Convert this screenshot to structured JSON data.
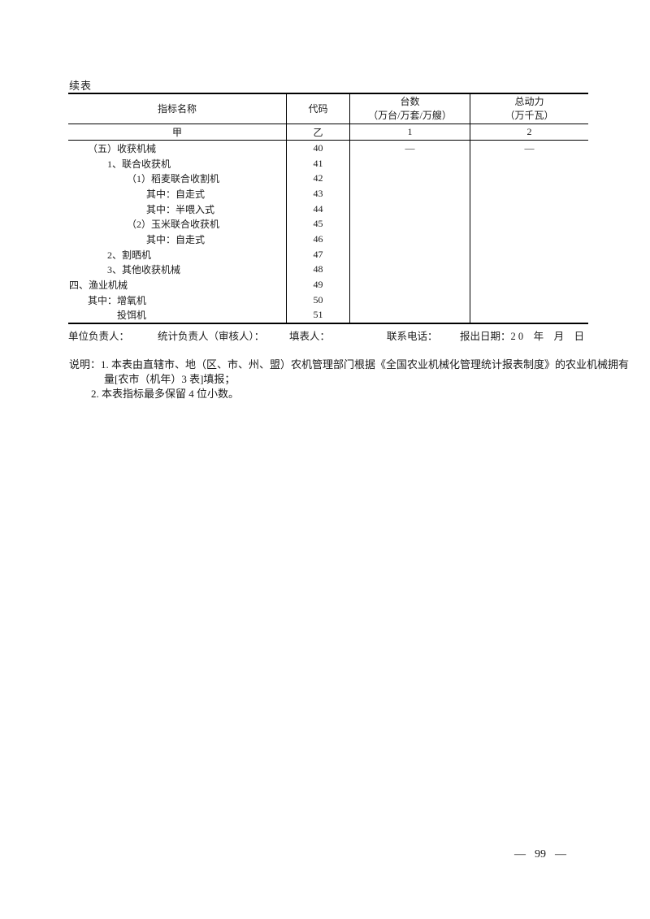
{
  "page": {
    "continued_label": "续表",
    "dash": "—",
    "page_number": "99"
  },
  "table": {
    "columns": {
      "name": "指标名称",
      "code": "代码",
      "units_line1": "台数",
      "units_line2": "（万台/万套/万艘）",
      "power_line1": "总动力",
      "power_line2": "（万千瓦）"
    },
    "subheader": {
      "name": "甲",
      "code": "乙",
      "units": "1",
      "power": "2"
    },
    "rows": [
      {
        "name": "（五）收获机械",
        "code": "40",
        "units": "—",
        "power": "—"
      },
      {
        "name": "1、联合收获机",
        "code": "41",
        "units": "",
        "power": ""
      },
      {
        "name": "（1）稻麦联合收割机",
        "code": "42",
        "units": "",
        "power": ""
      },
      {
        "name": "其中：自走式",
        "code": "43",
        "units": "",
        "power": ""
      },
      {
        "name": "其中：半喂入式",
        "code": "44",
        "units": "",
        "power": ""
      },
      {
        "name": "（2）玉米联合收获机",
        "code": "45",
        "units": "",
        "power": ""
      },
      {
        "name": "其中：自走式",
        "code": "46",
        "units": "",
        "power": ""
      },
      {
        "name": "2、割晒机",
        "code": "47",
        "units": "",
        "power": ""
      },
      {
        "name": "3、其他收获机械",
        "code": "48",
        "units": "",
        "power": ""
      },
      {
        "name": "四、渔业机械",
        "code": "49",
        "units": "",
        "power": ""
      },
      {
        "name": "其中：增氧机",
        "code": "50",
        "units": "",
        "power": ""
      },
      {
        "name": "投饵机",
        "code": "51",
        "units": "",
        "power": ""
      }
    ]
  },
  "signature": {
    "unit_head": "单位负责人：",
    "stats_head": "统计负责人（审核人）：",
    "preparer": "填表人：",
    "phone": "联系电话：",
    "report_date": "报出日期：2 0　年　月　日"
  },
  "notes": {
    "line1": "说明：1. 本表由直辖市、地（区、市、州、盟）农机管理部门根据《全国农业机械化管理统计报表制度》的农业机械拥有",
    "line2": "量[农市（机年）3 表]填报；",
    "line3": "2. 本表指标最多保留 4 位小数。"
  }
}
